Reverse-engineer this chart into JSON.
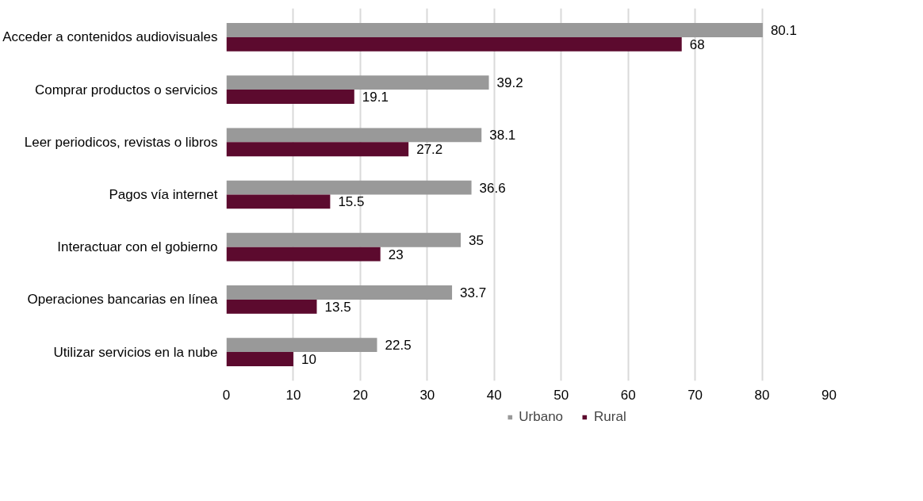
{
  "chart_data": {
    "type": "bar",
    "orientation": "horizontal",
    "categories": [
      "Acceder a contenidos audiovisuales",
      "Comprar productos o servicios",
      "Leer periodicos, revistas o libros",
      "Pagos vía internet",
      "Interactuar con el gobierno",
      "Operaciones bancarias en línea",
      "Utilizar servicios en la nube"
    ],
    "series": [
      {
        "name": "Urbano",
        "color": "#999999",
        "values": [
          80.1,
          39.2,
          38.1,
          36.6,
          35,
          33.7,
          22.5
        ]
      },
      {
        "name": "Rural",
        "color": "#5c0a2e",
        "values": [
          68,
          19.1,
          27.2,
          15.5,
          23,
          13.5,
          10
        ]
      }
    ],
    "xlim": [
      0,
      90
    ],
    "xticks": [
      0,
      10,
      20,
      30,
      40,
      50,
      60,
      70,
      80,
      90
    ],
    "grid": "x",
    "legend": "bottom",
    "data_labels": true
  }
}
